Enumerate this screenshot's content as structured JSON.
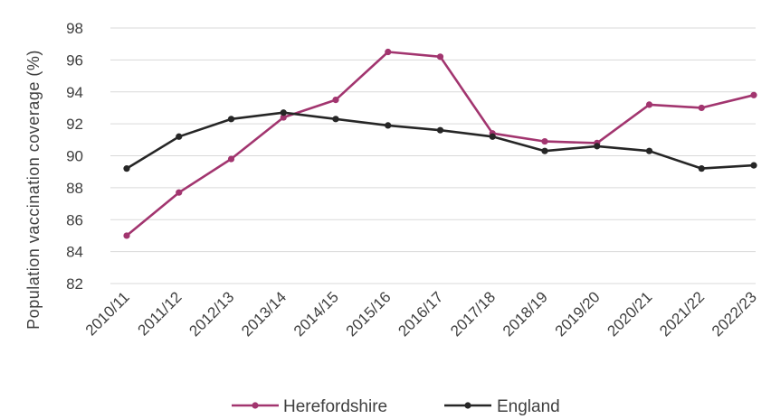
{
  "chart_data": {
    "type": "line",
    "title": "",
    "xlabel": "",
    "ylabel": "Population vaccination coverage (%)",
    "ylim": [
      82,
      98
    ],
    "yticks": [
      82,
      84,
      86,
      88,
      90,
      92,
      94,
      96,
      98
    ],
    "grid": true,
    "legend_position": "bottom",
    "categories": [
      "2010/11",
      "2011/12",
      "2012/13",
      "2013/14",
      "2014/15",
      "2015/16",
      "2016/17",
      "2017/18",
      "2018/19",
      "2019/20",
      "2020/21",
      "2021/22",
      "2022/23"
    ],
    "series": [
      {
        "name": "Herefordshire",
        "color": "#a2356f",
        "values": [
          85.0,
          87.7,
          89.8,
          92.4,
          93.5,
          96.5,
          96.2,
          91.4,
          90.9,
          90.8,
          93.2,
          93.0,
          93.8
        ]
      },
      {
        "name": "England",
        "color": "#262626",
        "values": [
          89.2,
          91.2,
          92.3,
          92.7,
          92.3,
          91.9,
          91.6,
          91.2,
          90.3,
          90.6,
          90.3,
          89.2,
          89.4
        ]
      }
    ]
  }
}
